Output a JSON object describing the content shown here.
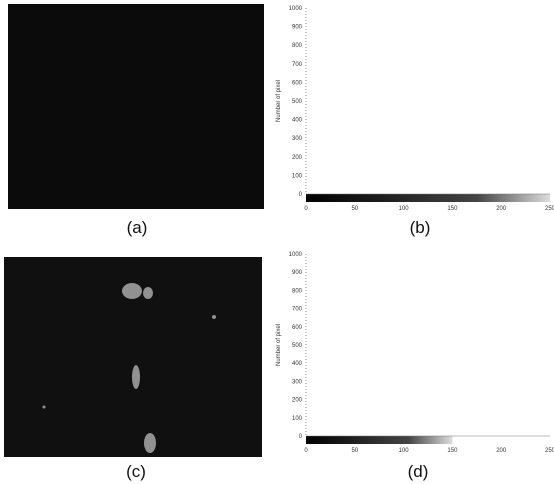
{
  "figures": [
    {
      "id": "a",
      "caption": "(a)"
    },
    {
      "id": "b",
      "caption": "(b)"
    },
    {
      "id": "c",
      "caption": "(c)"
    },
    {
      "id": "d",
      "caption": "(d)"
    }
  ],
  "chart_data": [
    {
      "type": "histogram",
      "panel": "(b)",
      "ylabel": "Number of pixel",
      "xlabel": "",
      "xlim": [
        0,
        250
      ],
      "ylim": [
        0,
        1000
      ],
      "yticks": [
        "0",
        "100",
        "200",
        "300",
        "400",
        "500",
        "600",
        "700",
        "800",
        "900",
        "1000"
      ],
      "xticks": [
        "0",
        "50",
        "100",
        "150",
        "200",
        "250"
      ],
      "bar_start": 0,
      "bar_end": 250,
      "gradient_bar": true
    },
    {
      "type": "histogram",
      "panel": "(d)",
      "ylabel": "Number of pixel",
      "xlabel": "",
      "xlim": [
        0,
        250
      ],
      "ylim": [
        0,
        1000
      ],
      "yticks": [
        "0",
        "100",
        "200",
        "300",
        "400",
        "500",
        "600",
        "700",
        "800",
        "900",
        "1000"
      ],
      "xticks": [
        "0",
        "50",
        "100",
        "150",
        "200",
        "250"
      ],
      "bar_start": 0,
      "bar_end": 150,
      "gradient_bar": true
    }
  ]
}
